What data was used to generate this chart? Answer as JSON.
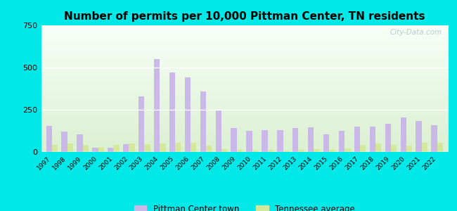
{
  "title": "Number of permits per 10,000 Pittman Center, TN residents",
  "years": [
    1997,
    1998,
    1999,
    2000,
    2001,
    2002,
    2003,
    2004,
    2005,
    2006,
    2007,
    2008,
    2009,
    2010,
    2011,
    2012,
    2013,
    2014,
    2015,
    2016,
    2017,
    2018,
    2019,
    2020,
    2021,
    2022
  ],
  "pittman": [
    155,
    120,
    105,
    25,
    25,
    45,
    330,
    550,
    470,
    440,
    360,
    245,
    140,
    125,
    130,
    130,
    140,
    145,
    105,
    125,
    148,
    152,
    165,
    205,
    185,
    160
  ],
  "tn_avg": [
    42,
    50,
    40,
    28,
    42,
    48,
    45,
    50,
    55,
    55,
    38,
    18,
    13,
    8,
    12,
    8,
    12,
    15,
    12,
    22,
    42,
    48,
    40,
    38,
    55,
    55
  ],
  "bar_color_pittman": "#c9b8e8",
  "bar_color_tn": "#d4e89b",
  "bg_outer": "#00e8e8",
  "bg_inner": "#e8f0e0",
  "ylim": [
    0,
    750
  ],
  "yticks": [
    0,
    250,
    500,
    750
  ],
  "bar_width": 0.38,
  "legend_pittman": "Pittman Center town",
  "legend_tn": "Tennessee average"
}
